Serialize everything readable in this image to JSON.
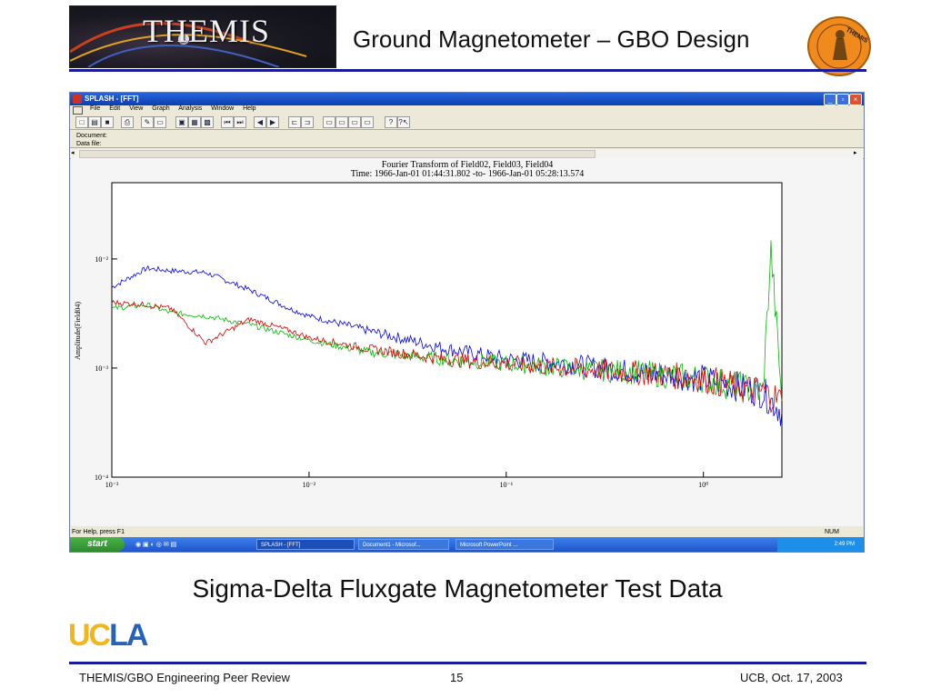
{
  "slide": {
    "title": "Ground Magnetometer – GBO Design",
    "logo_text": "THEMIS",
    "medallion_text": "THEMIS",
    "caption": "Sigma-Delta Fluxgate Magnetometer Test Data",
    "ucla_logo": "UCLA",
    "footer_left": "THEMIS/GBO Engineering Peer Review",
    "footer_center": "15",
    "footer_right": "UCB, Oct. 17, 2003"
  },
  "window": {
    "title": "SPLASH - [FFT]",
    "menu": [
      "File",
      "Edit",
      "View",
      "Graph",
      "Analysis",
      "Window",
      "Help"
    ],
    "doc_label": "Document:",
    "data_label": "Data file:",
    "status_left": "For Help, press F1",
    "status_right": "NUM"
  },
  "taskbar": {
    "start": "start",
    "tasks": [
      "SPLASH - [FFT]",
      "Document1 - Microsof...",
      "Microsoft PowerPoint ..."
    ],
    "clock": "2:49 PM"
  },
  "colors": {
    "accent_rule": "#1b1b9a",
    "ucla_gold": "#f2b61a",
    "ucla_blue": "#2563b8"
  },
  "chart_data": {
    "type": "line",
    "title": "Fourier Transform of Field02, Field03, Field04",
    "subtitle": "Time: 1966-Jan-01 01:44:31.802 -to- 1966-Jan-01 05:28:13.574",
    "xlabel": "",
    "ylabel": "Amplitude(Field04)",
    "xscale": "log",
    "yscale": "log",
    "xlim": [
      0.001,
      2.5
    ],
    "ylim": [
      0.0001,
      0.05
    ],
    "x_ticks": [
      "10⁻³",
      "10⁻²",
      "10⁻¹",
      "10⁰"
    ],
    "y_ticks": [
      "10⁻⁴",
      "10⁻³",
      "10⁻²"
    ],
    "series": [
      {
        "color": "#0000ff",
        "x": [
          0.001,
          0.0015,
          0.002,
          0.003,
          0.005,
          0.008,
          0.01,
          0.02,
          0.05,
          0.1,
          0.2,
          0.5,
          1.0,
          2.0,
          2.5
        ],
        "y": [
          0.0055,
          0.0082,
          0.0078,
          0.0075,
          0.0052,
          0.0035,
          0.003,
          0.0022,
          0.0015,
          0.0012,
          0.0011,
          0.0009,
          0.0008,
          0.0006,
          0.0004
        ]
      },
      {
        "color": "#00bb00",
        "x": [
          0.001,
          0.0015,
          0.002,
          0.003,
          0.005,
          0.008,
          0.01,
          0.02,
          0.05,
          0.1,
          0.2,
          0.5,
          1.0,
          2.0,
          2.2,
          2.5
        ],
        "y": [
          0.0035,
          0.0038,
          0.0032,
          0.003,
          0.0025,
          0.002,
          0.0018,
          0.0014,
          0.0012,
          0.0011,
          0.001,
          0.0009,
          0.0008,
          0.0006,
          0.012,
          0.0005
        ]
      },
      {
        "color": "#dd0000",
        "x": [
          0.001,
          0.0015,
          0.002,
          0.003,
          0.005,
          0.008,
          0.01,
          0.02,
          0.05,
          0.1,
          0.2,
          0.5,
          1.0,
          2.0,
          2.5
        ],
        "y": [
          0.004,
          0.0038,
          0.0035,
          0.0017,
          0.0028,
          0.0022,
          0.0019,
          0.0015,
          0.0012,
          0.0011,
          0.001,
          0.0009,
          0.0008,
          0.0006,
          0.0005
        ]
      }
    ]
  }
}
